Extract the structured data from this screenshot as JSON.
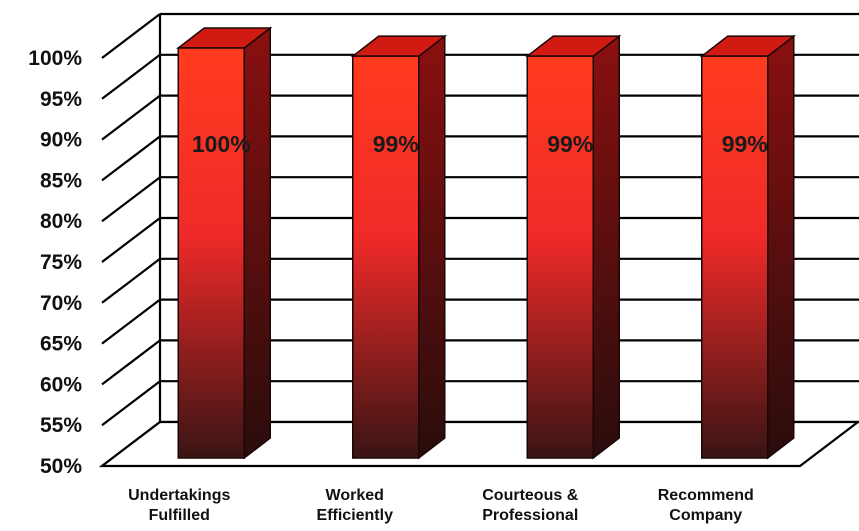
{
  "chart_data": {
    "type": "bar",
    "categories": [
      [
        "Undertakings",
        "Fulfilled"
      ],
      [
        "Worked",
        "Efficiently"
      ],
      [
        "Courteous &",
        "Professional"
      ],
      [
        "Recommend",
        "Company"
      ]
    ],
    "values": [
      100,
      99,
      99,
      99
    ],
    "data_labels": [
      "100%",
      "99%",
      "99%",
      "99%"
    ],
    "y_ticks": [
      "50%",
      "55%",
      "60%",
      "65%",
      "70%",
      "75%",
      "80%",
      "85%",
      "90%",
      "95%",
      "100%"
    ],
    "ylim": [
      50,
      100
    ],
    "grid": true,
    "legend": "none",
    "style": "3d-columns",
    "colors": {
      "bar_top": "#ff3b1f",
      "bar_mid": "#f02a28",
      "bar_bottom": "#3a1414",
      "bar_side": "#8a1010",
      "bar_cap": "#d11a12",
      "grid": "#000000",
      "text": "#111111"
    }
  }
}
